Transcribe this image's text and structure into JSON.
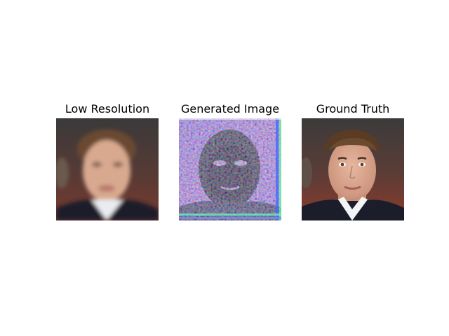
{
  "figure": {
    "panels": [
      {
        "title": "Low Resolution",
        "image": "face-photo-blurred"
      },
      {
        "title": "Generated Image",
        "image": "face-reconstruction-noisy"
      },
      {
        "title": "Ground Truth",
        "image": "face-photo-sharp"
      }
    ]
  }
}
